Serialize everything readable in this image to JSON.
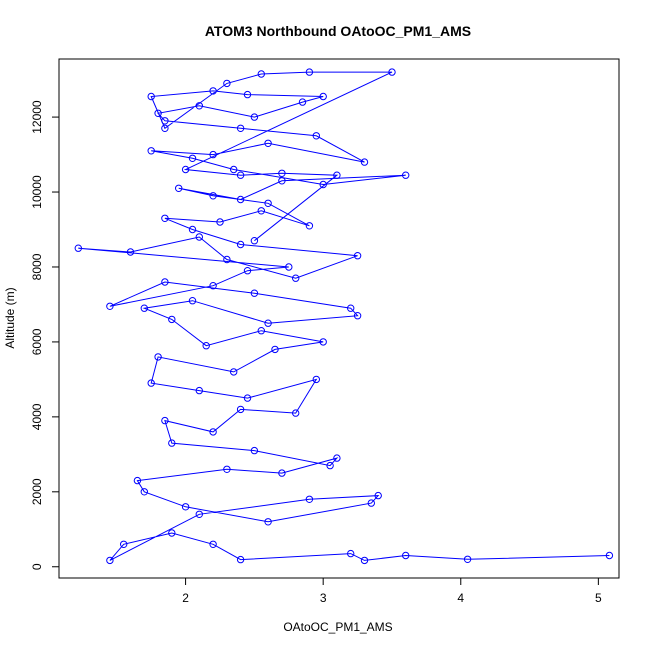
{
  "chart_data": {
    "type": "scatter",
    "title": "ATOM3 Northbound OAtoOC_PM1_AMS",
    "xlabel": "OAtoOC_PM1_AMS",
    "ylabel": "Altitude (m)",
    "xlim": [
      1.08,
      5.15
    ],
    "ylim": [
      -300,
      13550
    ],
    "x_ticks": [
      2,
      3,
      4,
      5
    ],
    "y_ticks": [
      0,
      2000,
      4000,
      6000,
      8000,
      10000,
      12000
    ],
    "x_tick_labels": [
      "2",
      "3",
      "4",
      "5"
    ],
    "y_tick_labels": [
      "0",
      "2000",
      "4000",
      "6000",
      "8000",
      "10000",
      "12000"
    ],
    "grid": false,
    "series": [
      {
        "color": "#0000ff",
        "marker": "open-circle",
        "line": true,
        "x": [
          5.08,
          4.05,
          3.6,
          3.3,
          3.2,
          2.4,
          2.2,
          1.9,
          1.55,
          1.45,
          2.1,
          2.9,
          3.4,
          3.35,
          2.6,
          2.0,
          1.7,
          1.65,
          2.3,
          2.7,
          3.1,
          3.05,
          2.5,
          1.9,
          1.85,
          2.2,
          2.4,
          2.8,
          2.95,
          2.45,
          2.1,
          1.75,
          1.8,
          2.35,
          2.65,
          3.0,
          2.55,
          2.15,
          1.9,
          1.7,
          2.05,
          2.6,
          3.25,
          3.2,
          2.5,
          1.85,
          1.45,
          2.2,
          2.45,
          2.75,
          1.22,
          1.6,
          2.1,
          2.3,
          2.8,
          3.25,
          2.4,
          2.05,
          1.85,
          2.25,
          2.55,
          2.9,
          2.6,
          2.2,
          1.95,
          2.4,
          2.7,
          3.6,
          3.0,
          2.35,
          2.05,
          1.75,
          2.2,
          2.6,
          3.3,
          2.95,
          2.4,
          1.85,
          1.8,
          2.1,
          2.5,
          2.85,
          3.0,
          2.45,
          2.2,
          1.75,
          1.85,
          2.3,
          2.55,
          2.9,
          3.5,
          2.0,
          2.4,
          2.7,
          3.1,
          2.5
        ],
        "y": [
          300,
          200,
          300,
          170,
          350,
          190,
          600,
          900,
          600,
          170,
          1400,
          1800,
          1900,
          1700,
          1200,
          1600,
          2000,
          2300,
          2600,
          2500,
          2900,
          2700,
          3100,
          3300,
          3900,
          3600,
          4200,
          4100,
          5000,
          4500,
          4700,
          4900,
          5600,
          5200,
          5800,
          6000,
          6300,
          5900,
          6600,
          6900,
          7100,
          6500,
          6700,
          6900,
          7300,
          7600,
          6950,
          7500,
          7900,
          8000,
          8500,
          8400,
          8800,
          8200,
          7700,
          8300,
          8600,
          9000,
          9300,
          9200,
          9500,
          9100,
          9700,
          9900,
          10100,
          9800,
          10300,
          10450,
          10200,
          10600,
          10900,
          11100,
          11000,
          11300,
          10800,
          11500,
          11700,
          11900,
          12100,
          12300,
          12000,
          12400,
          12550,
          12600,
          12700,
          12550,
          11700,
          12900,
          13150,
          13200,
          13200,
          10600,
          10450,
          10500,
          10450,
          8700
        ]
      }
    ]
  }
}
